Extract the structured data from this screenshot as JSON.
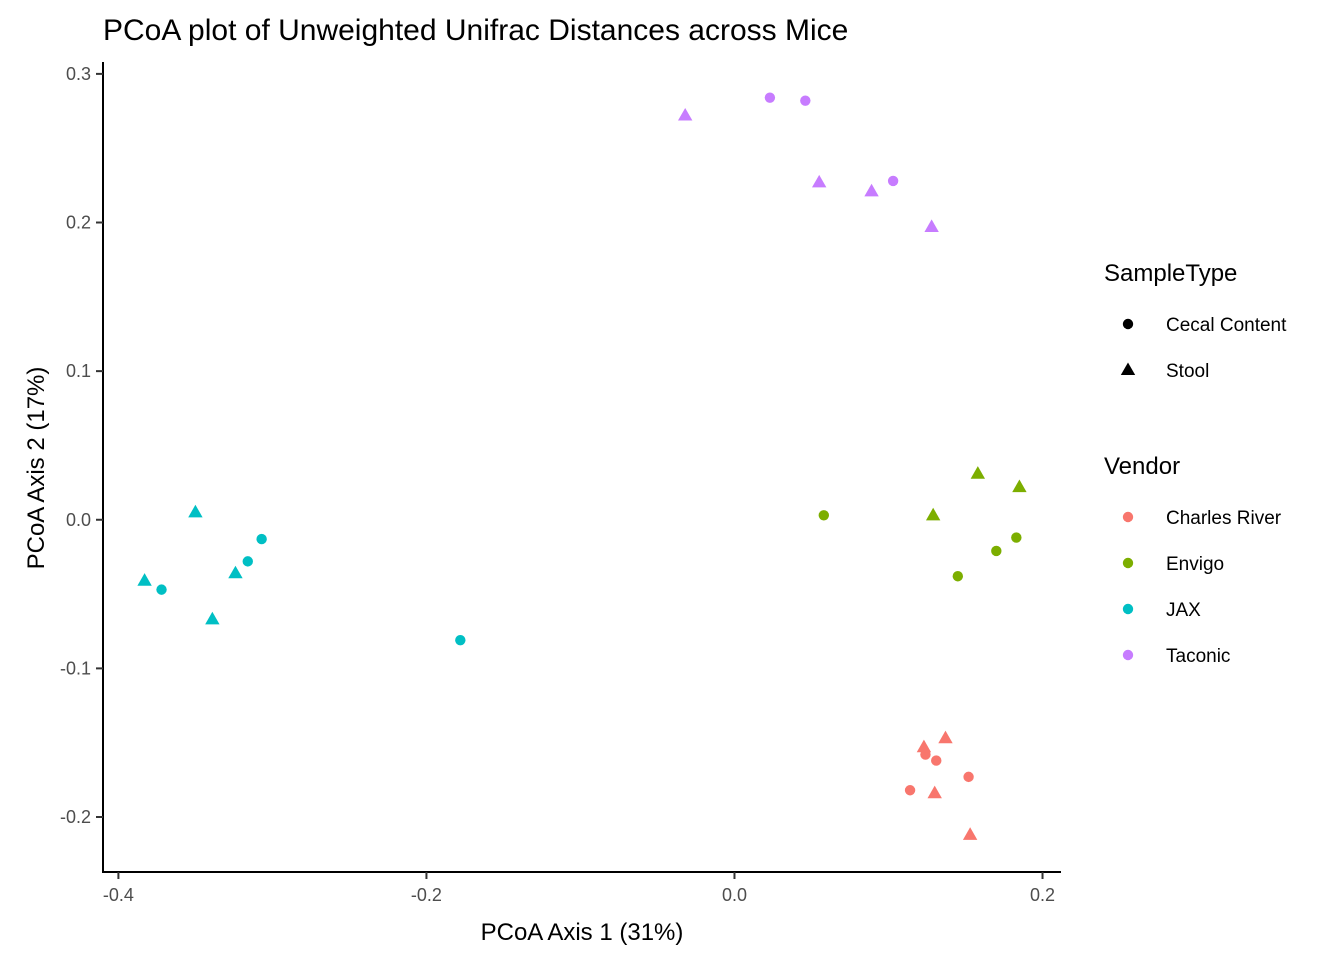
{
  "chart_data": {
    "type": "scatter",
    "title": "PCoA plot of Unweighted Unifrac Distances across Mice",
    "xlabel": "PCoA Axis 1 (31%)",
    "ylabel": "PCoA Axis 2 (17%)",
    "xlim": [
      -0.41,
      0.212
    ],
    "ylim": [
      -0.237,
      0.308
    ],
    "xticks": [
      -0.4,
      -0.2,
      0.0,
      0.2
    ],
    "xtick_labels": [
      "-0.4",
      "-0.2",
      "0.0",
      "0.2"
    ],
    "yticks": [
      -0.2,
      -0.1,
      0.0,
      0.1,
      0.2,
      0.3
    ],
    "ytick_labels": [
      "-0.2",
      "-0.1",
      "0.0",
      "0.1",
      "0.2",
      "0.3"
    ],
    "grid": false,
    "legend_placement": "right",
    "colors": {
      "Charles River": "#F8766D",
      "Envigo": "#7CAE00",
      "JAX": "#00BFC4",
      "Taconic": "#C77CFF"
    },
    "legends": {
      "shape": {
        "title": "SampleType",
        "entries": [
          {
            "label": "Cecal Content",
            "shape": "circle"
          },
          {
            "label": "Stool",
            "shape": "triangle"
          }
        ]
      },
      "color": {
        "title": "Vendor",
        "entries": [
          {
            "label": "Charles River"
          },
          {
            "label": "Envigo"
          },
          {
            "label": "JAX"
          },
          {
            "label": "Taconic"
          }
        ]
      }
    },
    "series": [
      {
        "name": "Taconic",
        "points": [
          {
            "x": 0.023,
            "y": 0.284,
            "shape": "circle"
          },
          {
            "x": 0.046,
            "y": 0.282,
            "shape": "circle"
          },
          {
            "x": 0.103,
            "y": 0.228,
            "shape": "circle"
          },
          {
            "x": -0.032,
            "y": 0.272,
            "shape": "triangle"
          },
          {
            "x": 0.055,
            "y": 0.227,
            "shape": "triangle"
          },
          {
            "x": 0.089,
            "y": 0.221,
            "shape": "triangle"
          },
          {
            "x": 0.128,
            "y": 0.197,
            "shape": "triangle"
          }
        ]
      },
      {
        "name": "Envigo",
        "points": [
          {
            "x": 0.058,
            "y": 0.003,
            "shape": "circle"
          },
          {
            "x": 0.145,
            "y": -0.038,
            "shape": "circle"
          },
          {
            "x": 0.17,
            "y": -0.021,
            "shape": "circle"
          },
          {
            "x": 0.183,
            "y": -0.012,
            "shape": "circle"
          },
          {
            "x": 0.129,
            "y": 0.003,
            "shape": "triangle"
          },
          {
            "x": 0.158,
            "y": 0.031,
            "shape": "triangle"
          },
          {
            "x": 0.185,
            "y": 0.022,
            "shape": "triangle"
          }
        ]
      },
      {
        "name": "JAX",
        "points": [
          {
            "x": -0.307,
            "y": -0.013,
            "shape": "circle"
          },
          {
            "x": -0.316,
            "y": -0.028,
            "shape": "circle"
          },
          {
            "x": -0.372,
            "y": -0.047,
            "shape": "circle"
          },
          {
            "x": -0.178,
            "y": -0.081,
            "shape": "circle"
          },
          {
            "x": -0.35,
            "y": 0.005,
            "shape": "triangle"
          },
          {
            "x": -0.383,
            "y": -0.041,
            "shape": "triangle"
          },
          {
            "x": -0.324,
            "y": -0.036,
            "shape": "triangle"
          },
          {
            "x": -0.339,
            "y": -0.067,
            "shape": "triangle"
          }
        ]
      },
      {
        "name": "Charles River",
        "points": [
          {
            "x": 0.124,
            "y": -0.158,
            "shape": "circle"
          },
          {
            "x": 0.131,
            "y": -0.162,
            "shape": "circle"
          },
          {
            "x": 0.152,
            "y": -0.173,
            "shape": "circle"
          },
          {
            "x": 0.114,
            "y": -0.182,
            "shape": "circle"
          },
          {
            "x": 0.123,
            "y": -0.153,
            "shape": "triangle"
          },
          {
            "x": 0.137,
            "y": -0.147,
            "shape": "triangle"
          },
          {
            "x": 0.13,
            "y": -0.184,
            "shape": "triangle"
          },
          {
            "x": 0.153,
            "y": -0.212,
            "shape": "triangle"
          }
        ]
      }
    ]
  }
}
